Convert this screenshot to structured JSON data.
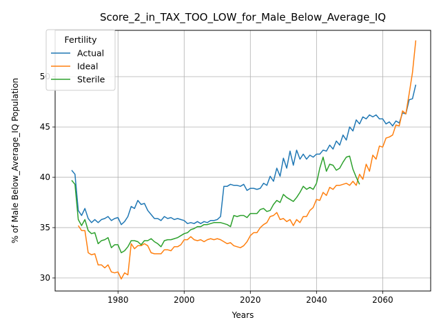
{
  "chart_data": {
    "type": "line",
    "title": "Score_2_in_TAX_TOO_LOW_for_Male_Below_Average_IQ",
    "xlabel": "Years",
    "ylabel": "% of Male Below_Average_IQ Population",
    "xlim": [
      1961,
      2074.5
    ],
    "ylim": [
      28.7,
      54.6
    ],
    "xticks": [
      1980,
      2000,
      2020,
      2040,
      2060
    ],
    "yticks": [
      30,
      35,
      40,
      45,
      50
    ],
    "grid": true,
    "legend": {
      "title": "Fertility",
      "position": "top-left"
    },
    "series": [
      {
        "name": "Actual",
        "color": "#1f77b4",
        "x": [
          1966,
          1967,
          1968,
          1969,
          1970,
          1971,
          1972,
          1973,
          1974,
          1975,
          1976,
          1977,
          1978,
          1979,
          1980,
          1981,
          1982,
          1983,
          1984,
          1985,
          1986,
          1987,
          1988,
          1989,
          1990,
          1991,
          1992,
          1993,
          1994,
          1995,
          1996,
          1997,
          1998,
          1999,
          2000,
          2001,
          2002,
          2003,
          2004,
          2005,
          2006,
          2007,
          2008,
          2009,
          2010,
          2011,
          2012,
          2013,
          2014,
          2015,
          2016,
          2017,
          2018,
          2019,
          2020,
          2021,
          2022,
          2023,
          2024,
          2025,
          2026,
          2027,
          2028,
          2029,
          2030,
          2031,
          2032,
          2033,
          2034,
          2035,
          2036,
          2037,
          2038,
          2039,
          2040,
          2041,
          2042,
          2043,
          2044,
          2045,
          2046,
          2047,
          2048,
          2049,
          2050,
          2051,
          2052,
          2053,
          2054,
          2055,
          2056,
          2057,
          2058,
          2059,
          2060,
          2061,
          2062,
          2063,
          2064,
          2065,
          2066,
          2067,
          2068,
          2069,
          2070
        ],
        "y": [
          40.7,
          40.3,
          36.7,
          36.2,
          36.9,
          35.9,
          35.5,
          35.8,
          35.5,
          35.8,
          35.9,
          36.1,
          35.7,
          35.9,
          36.0,
          35.3,
          35.6,
          36.1,
          37.1,
          36.9,
          37.7,
          37.3,
          37.4,
          36.7,
          36.3,
          35.9,
          35.9,
          35.7,
          36.1,
          35.9,
          36.0,
          35.8,
          35.9,
          35.8,
          35.7,
          35.4,
          35.5,
          35.4,
          35.6,
          35.4,
          35.6,
          35.5,
          35.7,
          35.7,
          35.8,
          36.1,
          39.1,
          39.1,
          39.3,
          39.2,
          39.2,
          39.1,
          39.3,
          38.7,
          38.9,
          38.9,
          38.8,
          38.9,
          39.4,
          39.2,
          40.1,
          39.6,
          40.9,
          40.1,
          41.9,
          40.9,
          42.6,
          41.2,
          42.7,
          41.8,
          42.3,
          41.8,
          42.2,
          42.0,
          42.3,
          42.3,
          42.7,
          42.6,
          43.2,
          42.8,
          43.6,
          43.2,
          44.2,
          43.7,
          45.0,
          44.6,
          45.7,
          45.3,
          46.0,
          45.8,
          46.2,
          46.0,
          46.2,
          45.8,
          45.8,
          45.3,
          45.5,
          45.1,
          45.6,
          45.4,
          46.4,
          46.3,
          47.7,
          47.8,
          49.2
        ]
      },
      {
        "name": "Ideal",
        "color": "#ff7f0e",
        "x": [
          1968,
          1969,
          1970,
          1971,
          1972,
          1973,
          1974,
          1975,
          1976,
          1977,
          1978,
          1979,
          1980,
          1981,
          1982,
          1983,
          1984,
          1985,
          1986,
          1987,
          1988,
          1989,
          1990,
          1991,
          1992,
          1993,
          1994,
          1995,
          1996,
          1997,
          1998,
          1999,
          2000,
          2001,
          2002,
          2003,
          2004,
          2005,
          2006,
          2007,
          2008,
          2009,
          2010,
          2011,
          2012,
          2013,
          2014,
          2015,
          2016,
          2017,
          2018,
          2019,
          2020,
          2021,
          2022,
          2023,
          2024,
          2025,
          2026,
          2027,
          2028,
          2029,
          2030,
          2031,
          2032,
          2033,
          2034,
          2035,
          2036,
          2037,
          2038,
          2039,
          2040,
          2041,
          2042,
          2043,
          2044,
          2045,
          2046,
          2047,
          2048,
          2049,
          2050,
          2051,
          2052,
          2053,
          2054,
          2055,
          2056,
          2057,
          2058,
          2059,
          2060,
          2061,
          2062,
          2063,
          2064,
          2065,
          2066,
          2067,
          2068,
          2069,
          2070
        ],
        "y": [
          35.2,
          34.7,
          34.7,
          32.5,
          32.3,
          32.4,
          31.3,
          31.3,
          31.0,
          31.3,
          30.6,
          30.5,
          30.6,
          29.9,
          30.5,
          30.3,
          33.4,
          32.9,
          33.2,
          33.2,
          33.4,
          33.2,
          32.5,
          32.4,
          32.4,
          32.4,
          32.8,
          32.8,
          32.7,
          33.1,
          33.1,
          33.3,
          33.8,
          33.8,
          34.1,
          33.8,
          33.7,
          33.8,
          33.6,
          33.8,
          33.9,
          33.8,
          33.9,
          33.8,
          33.6,
          33.4,
          33.5,
          33.2,
          33.1,
          33.0,
          33.2,
          33.6,
          34.2,
          34.5,
          34.5,
          35.0,
          35.3,
          35.5,
          36.1,
          36.2,
          36.5,
          35.8,
          35.9,
          35.6,
          35.8,
          35.2,
          35.8,
          35.5,
          36.1,
          36.1,
          36.7,
          37.0,
          37.8,
          37.7,
          38.5,
          38.2,
          39.0,
          38.8,
          39.2,
          39.2,
          39.3,
          39.4,
          39.2,
          39.6,
          39.2,
          40.3,
          39.8,
          41.3,
          40.6,
          42.2,
          41.8,
          43.1,
          43.0,
          43.9,
          44.0,
          44.2,
          45.2,
          45.1,
          46.6,
          46.3,
          48.3,
          50.4,
          53.6
        ]
      },
      {
        "name": "Sterile",
        "color": "#2ca02c",
        "x": [
          1966,
          1967,
          1968,
          1969,
          1970,
          1971,
          1972,
          1973,
          1974,
          1975,
          1976,
          1977,
          1978,
          1979,
          1980,
          1981,
          1982,
          1983,
          1984,
          1985,
          1986,
          1987,
          1988,
          1989,
          1990,
          1991,
          1992,
          1993,
          1994,
          1995,
          1996,
          1997,
          1998,
          1999,
          2000,
          2001,
          2002,
          2003,
          2004,
          2005,
          2006,
          2007,
          2008,
          2009,
          2010,
          2011,
          2012,
          2013,
          2014,
          2015,
          2016,
          2017,
          2018,
          2019,
          2020,
          2021,
          2022,
          2023,
          2024,
          2025,
          2026,
          2027,
          2028,
          2029,
          2030,
          2031,
          2032,
          2033,
          2034,
          2035,
          2036,
          2037,
          2038,
          2039,
          2040,
          2041,
          2042,
          2043,
          2044,
          2045,
          2046,
          2047,
          2048,
          2049,
          2050,
          2051,
          2052,
          2053
        ],
        "y": [
          39.7,
          39.3,
          35.8,
          35.2,
          35.8,
          34.7,
          34.4,
          34.5,
          33.4,
          33.7,
          33.8,
          34.0,
          33.0,
          33.3,
          33.3,
          32.5,
          32.7,
          33.1,
          33.7,
          33.7,
          33.6,
          33.3,
          33.7,
          33.7,
          33.9,
          33.6,
          33.4,
          33.1,
          33.7,
          33.8,
          33.8,
          33.9,
          34.0,
          34.2,
          34.4,
          34.5,
          34.8,
          34.9,
          35.1,
          35.1,
          35.3,
          35.3,
          35.4,
          35.5,
          35.5,
          35.5,
          35.4,
          35.3,
          35.1,
          36.2,
          36.1,
          36.2,
          36.2,
          36.0,
          36.4,
          36.4,
          36.4,
          36.8,
          36.9,
          36.6,
          36.7,
          37.3,
          37.7,
          37.5,
          38.3,
          38.0,
          37.8,
          37.6,
          38.0,
          38.5,
          39.1,
          38.8,
          39.0,
          38.8,
          39.4,
          40.9,
          42.0,
          40.6,
          41.3,
          41.2,
          40.7,
          40.9,
          41.5,
          42.0,
          42.1,
          40.8,
          40.0,
          39.3
        ]
      }
    ]
  }
}
